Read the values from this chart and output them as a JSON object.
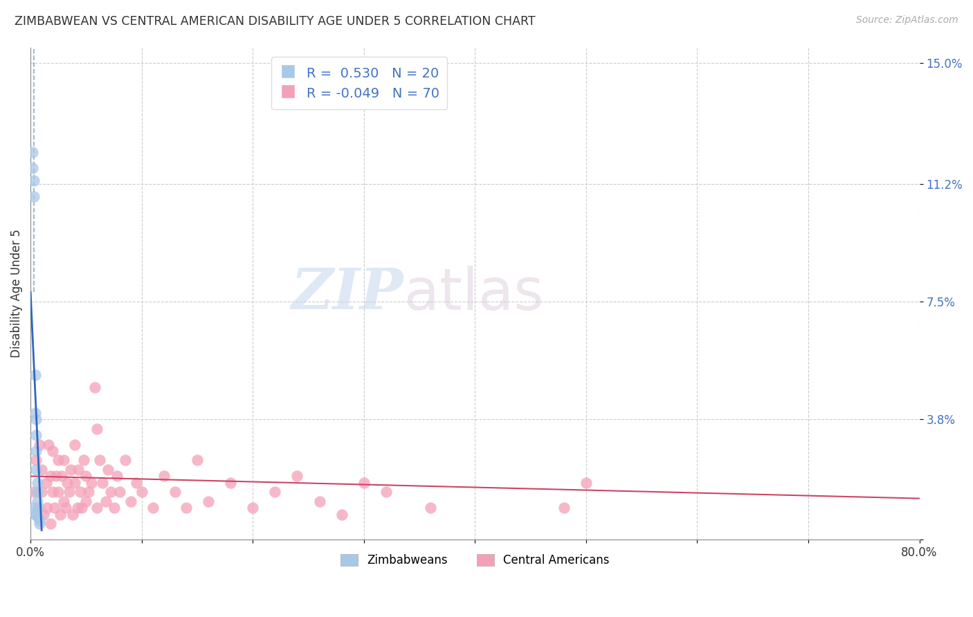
{
  "title": "ZIMBABWEAN VS CENTRAL AMERICAN DISABILITY AGE UNDER 5 CORRELATION CHART",
  "source": "Source: ZipAtlas.com",
  "ylabel": "Disability Age Under 5",
  "xlim": [
    0.0,
    0.8
  ],
  "ylim": [
    0.0,
    0.155
  ],
  "ytick_values": [
    0.0,
    0.038,
    0.075,
    0.112,
    0.15
  ],
  "ytick_labels": [
    "",
    "3.8%",
    "7.5%",
    "11.2%",
    "15.0%"
  ],
  "r_zimbabwe": 0.53,
  "n_zimbabwe": 20,
  "r_central": -0.049,
  "n_central": 70,
  "blue_dot_color": "#a8c8e8",
  "blue_line_color": "#3366bb",
  "blue_dash_color": "#6699cc",
  "pink_dot_color": "#f4a0b8",
  "pink_line_color": "#cc4466",
  "legend_label_zimbabwe": "Zimbabweans",
  "legend_label_central": "Central Americans",
  "watermark_zip": "ZIP",
  "watermark_atlas": "atlas",
  "background_color": "#ffffff",
  "grid_color": "#cccccc",
  "zimbabwe_x": [
    0.002,
    0.002,
    0.003,
    0.003,
    0.003,
    0.004,
    0.004,
    0.004,
    0.005,
    0.005,
    0.005,
    0.005,
    0.005,
    0.006,
    0.006,
    0.006,
    0.007,
    0.007,
    0.008,
    0.008
  ],
  "zimbabwe_y": [
    0.122,
    0.117,
    0.113,
    0.108,
    0.01,
    0.052,
    0.04,
    0.008,
    0.038,
    0.033,
    0.028,
    0.022,
    0.008,
    0.018,
    0.015,
    0.012,
    0.01,
    0.007,
    0.006,
    0.005
  ],
  "central_x": [
    0.003,
    0.005,
    0.007,
    0.008,
    0.01,
    0.01,
    0.012,
    0.014,
    0.015,
    0.016,
    0.018,
    0.018,
    0.02,
    0.02,
    0.022,
    0.023,
    0.025,
    0.025,
    0.027,
    0.028,
    0.03,
    0.03,
    0.032,
    0.033,
    0.035,
    0.036,
    0.038,
    0.04,
    0.04,
    0.042,
    0.043,
    0.045,
    0.046,
    0.048,
    0.05,
    0.05,
    0.052,
    0.055,
    0.058,
    0.06,
    0.06,
    0.062,
    0.065,
    0.068,
    0.07,
    0.072,
    0.075,
    0.078,
    0.08,
    0.085,
    0.09,
    0.095,
    0.1,
    0.11,
    0.12,
    0.13,
    0.14,
    0.15,
    0.16,
    0.18,
    0.2,
    0.22,
    0.24,
    0.26,
    0.28,
    0.3,
    0.32,
    0.36,
    0.5,
    0.48
  ],
  "central_y": [
    0.015,
    0.025,
    0.01,
    0.03,
    0.015,
    0.022,
    0.008,
    0.018,
    0.01,
    0.03,
    0.02,
    0.005,
    0.015,
    0.028,
    0.01,
    0.02,
    0.015,
    0.025,
    0.008,
    0.02,
    0.012,
    0.025,
    0.01,
    0.018,
    0.015,
    0.022,
    0.008,
    0.018,
    0.03,
    0.01,
    0.022,
    0.015,
    0.01,
    0.025,
    0.012,
    0.02,
    0.015,
    0.018,
    0.048,
    0.035,
    0.01,
    0.025,
    0.018,
    0.012,
    0.022,
    0.015,
    0.01,
    0.02,
    0.015,
    0.025,
    0.012,
    0.018,
    0.015,
    0.01,
    0.02,
    0.015,
    0.01,
    0.025,
    0.012,
    0.018,
    0.01,
    0.015,
    0.02,
    0.012,
    0.008,
    0.018,
    0.015,
    0.01,
    0.018,
    0.01
  ]
}
